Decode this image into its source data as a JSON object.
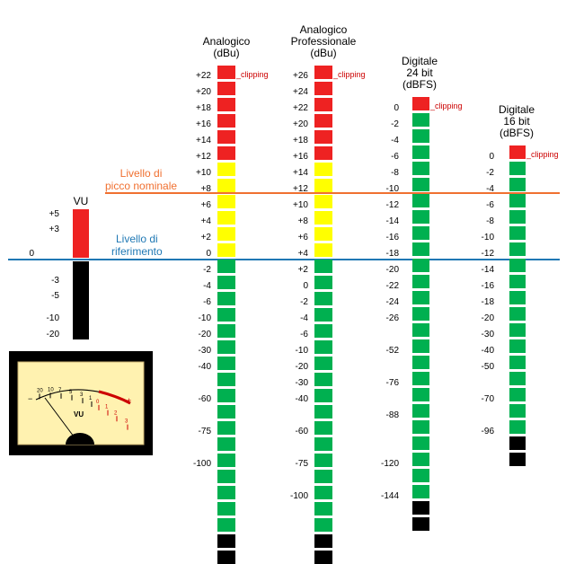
{
  "colors": {
    "red": "#ee2222",
    "yellow": "#ffff00",
    "green": "#00b050",
    "black": "#000000",
    "orange_line": "#f07030",
    "blue_line": "#1f78b4",
    "clip_text": "#cc0000",
    "meter_face": "#fff2b0"
  },
  "reference_labels": {
    "nominal_peak": "Livello di\npicco nominale",
    "reference": "Livello di\nriferimento"
  },
  "clipping_label": "_clipping",
  "vu_column": {
    "title": "VU",
    "red_labels": [
      "+5",
      "+3"
    ],
    "zero_label": "0",
    "black_labels": [
      "-3",
      "-5",
      "-10",
      "-20"
    ]
  },
  "vu_meter": {
    "scale_labels": [
      "20",
      "10",
      "7",
      "5",
      "3",
      "1",
      "0",
      "1",
      "2",
      "3"
    ],
    "minus_sign": "−",
    "plus_sign": "+",
    "unit": "VU"
  },
  "columns": [
    {
      "id": "analog",
      "title": "Analogico\n(dBu)",
      "labels": [
        "+22",
        "+20",
        "+18",
        "+16",
        "+14",
        "+12",
        "+10",
        "+8",
        "+6",
        "+4",
        "+2",
        "0",
        "-2",
        "-4",
        "-6",
        "-10",
        "-20",
        "-30",
        "-40",
        "-60",
        "-75",
        "-100"
      ],
      "segments": [
        "red",
        "red",
        "red",
        "red",
        "red",
        "red",
        "yellow",
        "yellow",
        "yellow",
        "yellow",
        "yellow",
        "yellow",
        "green",
        "green",
        "green",
        "green",
        "green",
        "green",
        "green",
        "green",
        "green",
        "green",
        "green",
        "green",
        "green",
        "green",
        "green",
        "green",
        "green",
        "black",
        "black"
      ]
    },
    {
      "id": "analog-pro",
      "title": "Analogico\nProfessionale\n(dBu)",
      "labels": [
        "+26",
        "+24",
        "+22",
        "+20",
        "+18",
        "+16",
        "+14",
        "+12",
        "+10",
        "+8",
        "+6",
        "+4",
        "+2",
        "0",
        "-2",
        "-4",
        "-6",
        "-10",
        "-20",
        "-30",
        "-40",
        "-60",
        "-75",
        "-100"
      ],
      "segments": [
        "red",
        "red",
        "red",
        "red",
        "red",
        "red",
        "yellow",
        "yellow",
        "yellow",
        "yellow",
        "yellow",
        "yellow",
        "green",
        "green",
        "green",
        "green",
        "green",
        "green",
        "green",
        "green",
        "green",
        "green",
        "green",
        "green",
        "green",
        "green",
        "green",
        "green",
        "green",
        "black",
        "black"
      ]
    },
    {
      "id": "digital24",
      "title": "Digitale\n24 bit\n(dBFS)",
      "labels": [
        "0",
        "-2",
        "-4",
        "-6",
        "-8",
        "-10",
        "-12",
        "-14",
        "-16",
        "-18",
        "-20",
        "-22",
        "-24",
        "-26",
        "-52",
        "-76",
        "-88",
        "-120",
        "-144"
      ],
      "segments": [
        "red",
        "green",
        "green",
        "green",
        "green",
        "green",
        "green",
        "green",
        "green",
        "green",
        "green",
        "green",
        "green",
        "green",
        "green",
        "green",
        "green",
        "green",
        "green",
        "green",
        "green",
        "green",
        "green",
        "green",
        "green",
        "black",
        "black"
      ]
    },
    {
      "id": "digital16",
      "title": "Digitale\n16 bit\n(dBFS)",
      "labels": [
        "0",
        "-2",
        "-4",
        "-6",
        "-8",
        "-10",
        "-12",
        "-14",
        "-16",
        "-18",
        "-20",
        "-30",
        "-40",
        "-50",
        "-70",
        "-96"
      ],
      "segments": [
        "red",
        "green",
        "green",
        "green",
        "green",
        "green",
        "green",
        "green",
        "green",
        "green",
        "green",
        "green",
        "green",
        "green",
        "green",
        "green",
        "green",
        "green",
        "black",
        "black"
      ]
    }
  ]
}
